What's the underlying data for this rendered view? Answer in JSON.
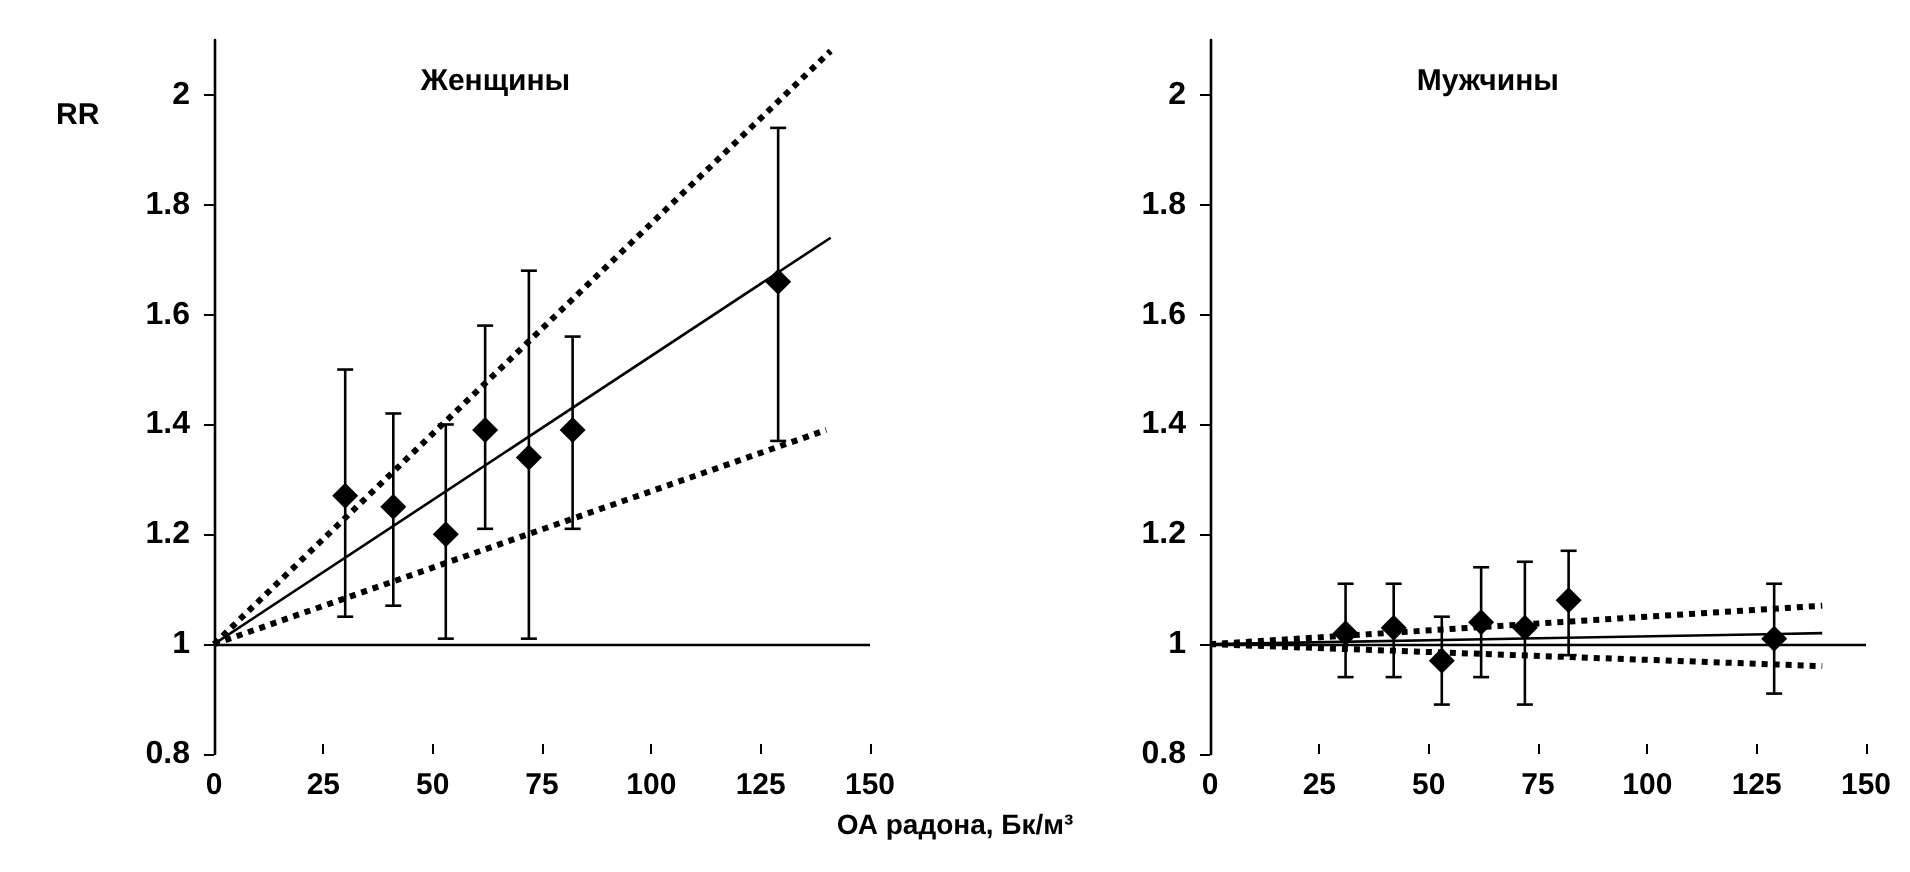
{
  "chart_data": [
    {
      "type": "scatter",
      "title": "Женщины",
      "ylabel": "RR",
      "xlabel": "ОА радона, Бк/м³",
      "xlim": [
        0,
        150
      ],
      "xticks": [
        0,
        25,
        50,
        75,
        100,
        125,
        150
      ],
      "ylim": [
        0.8,
        2.1
      ],
      "yticks": [
        0.8,
        1,
        1.2,
        1.4,
        1.6,
        1.8,
        2
      ],
      "grid": false,
      "ref_lines": [
        {
          "axis": "y",
          "value": 1,
          "color": "#000000"
        }
      ],
      "series": [
        {
          "marker": "diamond",
          "color": "#000000",
          "x": [
            30,
            41,
            53,
            62,
            72,
            82,
            129
          ],
          "values": [
            1.27,
            1.25,
            1.2,
            1.39,
            1.34,
            1.39,
            1.66
          ],
          "errors": [
            [
              1.05,
              1.5
            ],
            [
              1.07,
              1.42
            ],
            [
              1.01,
              1.4
            ],
            [
              1.21,
              1.58
            ],
            [
              1.01,
              1.68
            ],
            [
              1.21,
              1.56
            ],
            [
              1.37,
              1.94
            ]
          ]
        },
        {
          "type": "line",
          "line_style": "solid",
          "marker": "none",
          "color": "#000000",
          "x": [
            0,
            141
          ],
          "values": [
            1,
            1.74
          ]
        },
        {
          "type": "line",
          "line_style": "dotted",
          "marker": "none",
          "color": "#000000",
          "x": [
            0,
            141
          ],
          "values": [
            1,
            2.08
          ]
        },
        {
          "type": "line",
          "line_style": "dotted",
          "marker": "none",
          "color": "#000000",
          "x": [
            0,
            140
          ],
          "values": [
            1,
            1.39
          ]
        }
      ]
    },
    {
      "type": "scatter",
      "title": "Мужчины",
      "xlim": [
        0,
        150
      ],
      "xticks": [
        0,
        25,
        50,
        75,
        100,
        125,
        150
      ],
      "ylim": [
        0.8,
        2.1
      ],
      "yticks": [
        0.8,
        1,
        1.2,
        1.4,
        1.6,
        1.8,
        2
      ],
      "grid": false,
      "ref_lines": [
        {
          "axis": "y",
          "value": 1,
          "color": "#000000"
        }
      ],
      "series": [
        {
          "marker": "diamond",
          "color": "#000000",
          "x": [
            31,
            42,
            53,
            62,
            72,
            82,
            129
          ],
          "values": [
            1.02,
            1.03,
            0.97,
            1.04,
            1.03,
            1.08,
            1.01
          ],
          "errors": [
            [
              0.94,
              1.11
            ],
            [
              0.94,
              1.11
            ],
            [
              0.89,
              1.05
            ],
            [
              0.94,
              1.14
            ],
            [
              0.89,
              1.15
            ],
            [
              0.98,
              1.17
            ],
            [
              0.91,
              1.11
            ]
          ]
        },
        {
          "type": "line",
          "line_style": "solid",
          "marker": "none",
          "color": "#000000",
          "x": [
            0,
            140
          ],
          "values": [
            1,
            1.02
          ]
        },
        {
          "type": "line",
          "line_style": "dotted",
          "marker": "none",
          "color": "#000000",
          "x": [
            0,
            140
          ],
          "values": [
            1,
            1.07
          ]
        },
        {
          "type": "line",
          "line_style": "dotted",
          "marker": "none",
          "color": "#000000",
          "x": [
            0,
            140
          ],
          "values": [
            1,
            0.96
          ]
        }
      ]
    }
  ]
}
